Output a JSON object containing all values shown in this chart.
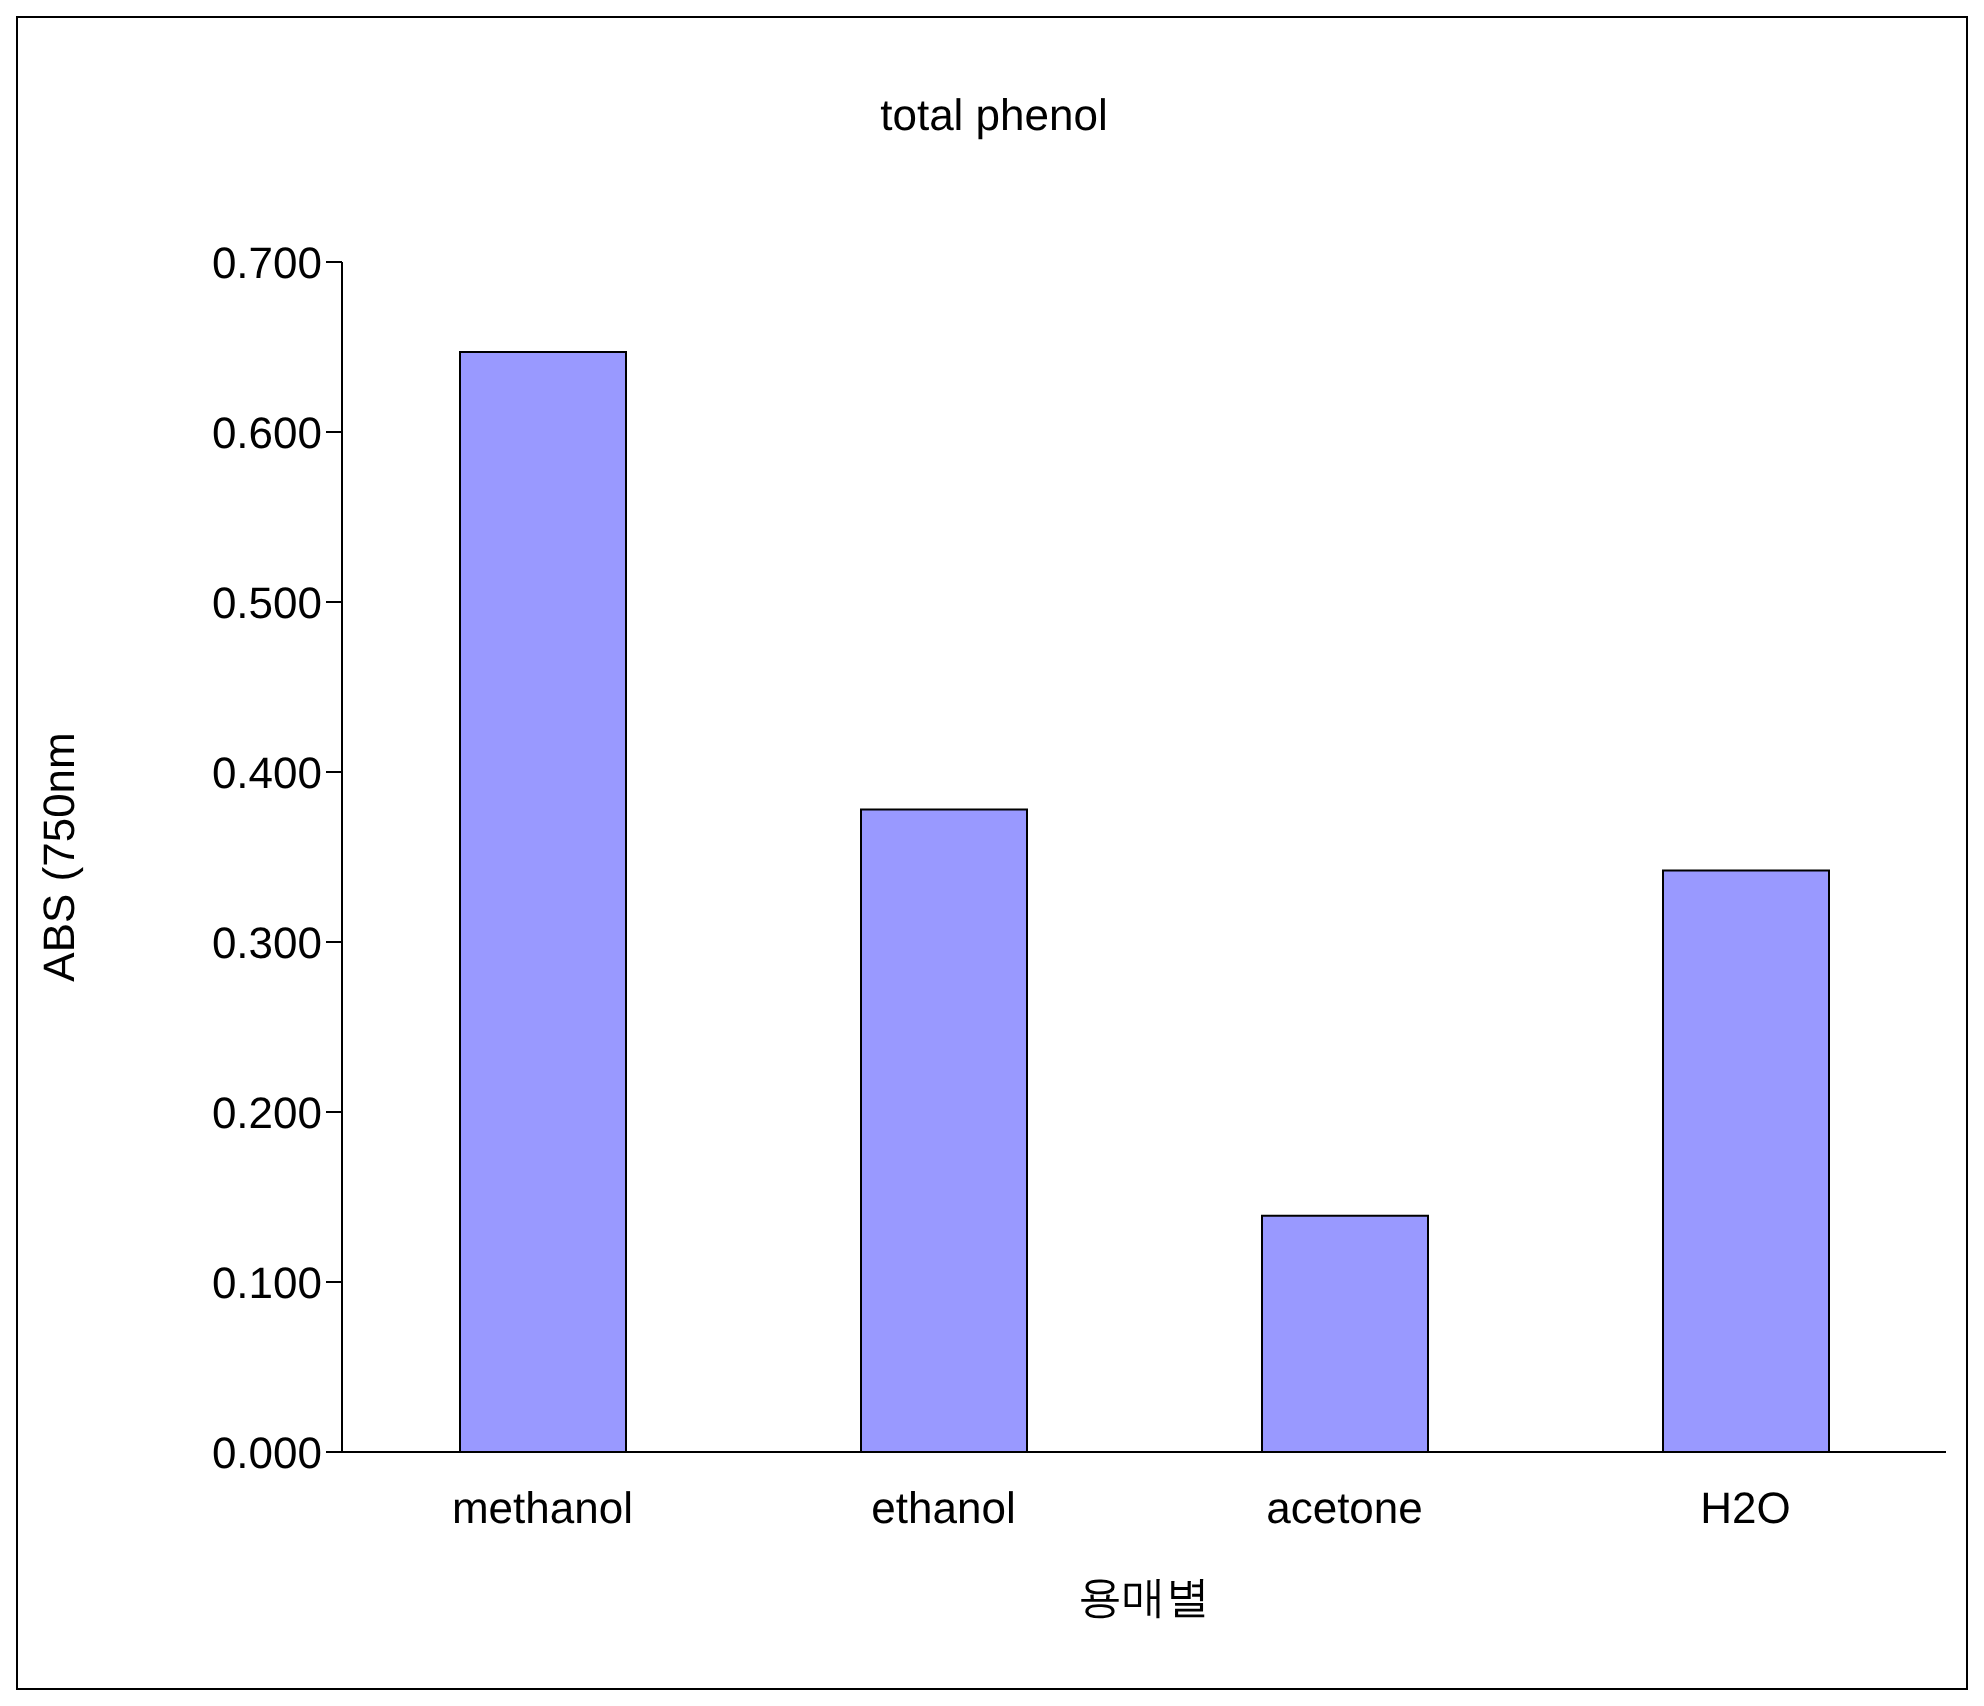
{
  "chart_data": {
    "type": "bar",
    "title": "total phenol",
    "xlabel": "용매별",
    "ylabel": "ABS (750nm",
    "categories": [
      "methanol",
      "ethanol",
      "acetone",
      "H2O"
    ],
    "values": [
      0.647,
      0.378,
      0.139,
      0.342
    ],
    "color": "#9999ff",
    "ylim": [
      0,
      0.7
    ],
    "yticks": [
      {
        "value": 0,
        "label": "0.000"
      },
      {
        "value": 0.1,
        "label": "0.100"
      },
      {
        "value": 0.2,
        "label": "0.200"
      },
      {
        "value": 0.3,
        "label": "0.300"
      },
      {
        "value": 0.4,
        "label": "0.400"
      },
      {
        "value": 0.5,
        "label": "0.500"
      },
      {
        "value": 0.6,
        "label": "0.600"
      },
      {
        "value": 0.7,
        "label": "0.700"
      }
    ],
    "grid": false,
    "legend": false
  }
}
